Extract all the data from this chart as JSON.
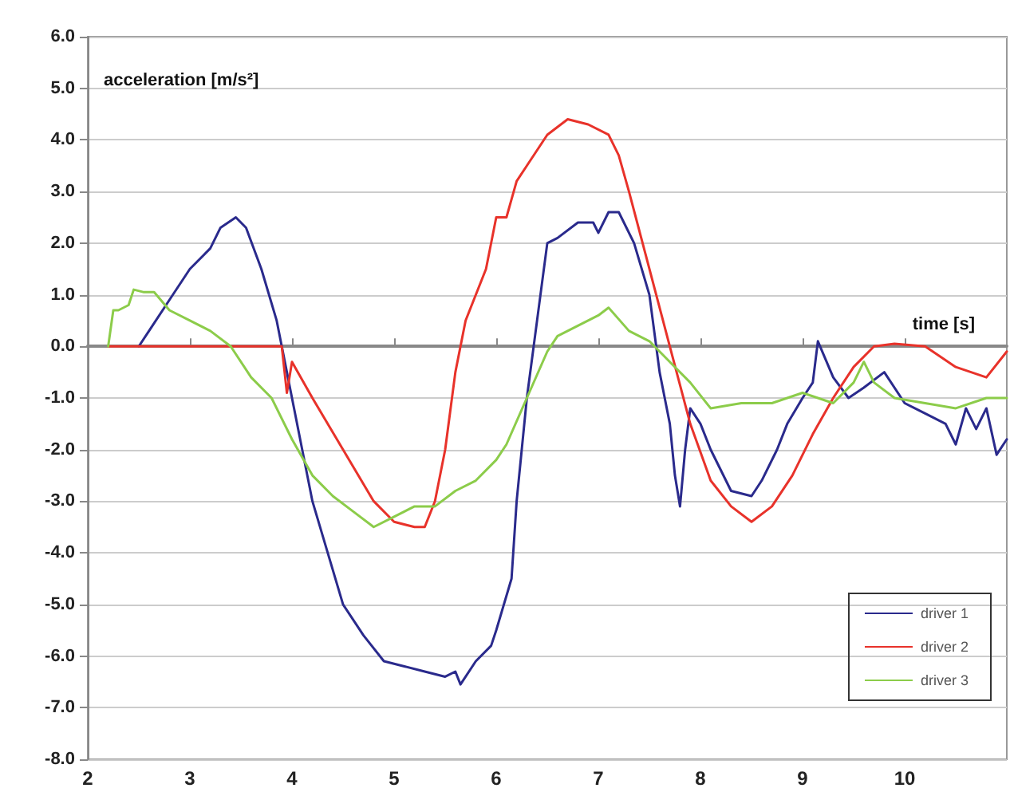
{
  "chart_data": {
    "type": "line",
    "xlabel": "time [s]",
    "ylabel": "acceleration [m/s²]",
    "xlim": [
      2,
      11
    ],
    "xticks": [
      2,
      3,
      4,
      5,
      6,
      7,
      8,
      9,
      10
    ],
    "ylim": [
      -8,
      6
    ],
    "yticks": [
      {
        "value": -8,
        "label": "-8.0"
      },
      {
        "value": -7,
        "label": "-7.0"
      },
      {
        "value": -6,
        "label": "-6.0"
      },
      {
        "value": -5,
        "label": "-5.0"
      },
      {
        "value": -4,
        "label": "-4.0"
      },
      {
        "value": -3,
        "label": "-3.0"
      },
      {
        "value": -2,
        "label": "-2.0"
      },
      {
        "value": -1,
        "label": "-1.0"
      },
      {
        "value": 0,
        "label": "0.0"
      },
      {
        "value": 1,
        "label": "1.0"
      },
      {
        "value": 2,
        "label": "2.0"
      },
      {
        "value": 3,
        "label": "3.0"
      },
      {
        "value": 4,
        "label": "4.0"
      },
      {
        "value": 5,
        "label": "5.0"
      },
      {
        "value": 6,
        "label": "6.0"
      }
    ],
    "grid": "y",
    "legend": "bottom right",
    "marker": "none",
    "line_style": "solid",
    "series": [
      {
        "name": "driver 1",
        "color": "#2a2a8c",
        "x": [
          2.5,
          2.6,
          2.8,
          3.0,
          3.2,
          3.3,
          3.45,
          3.55,
          3.7,
          3.85,
          3.95,
          4.0,
          4.1,
          4.2,
          4.35,
          4.5,
          4.7,
          4.9,
          5.1,
          5.3,
          5.5,
          5.6,
          5.65,
          5.8,
          5.95,
          6.0,
          6.15,
          6.2,
          6.3,
          6.4,
          6.5,
          6.6,
          6.8,
          6.95,
          7.0,
          7.1,
          7.2,
          7.35,
          7.5,
          7.6,
          7.7,
          7.75,
          7.8,
          7.85,
          7.9,
          8.0,
          8.1,
          8.3,
          8.5,
          8.6,
          8.75,
          8.85,
          9.0,
          9.1,
          9.15,
          9.3,
          9.45,
          9.6,
          9.8,
          10.0,
          10.2,
          10.4,
          10.5,
          10.6,
          10.7,
          10.8,
          10.9,
          11.0
        ],
        "values": [
          0,
          0.3,
          0.9,
          1.5,
          1.9,
          2.3,
          2.5,
          2.3,
          1.5,
          0.5,
          -0.5,
          -1.0,
          -2.0,
          -3.0,
          -4.0,
          -5.0,
          -5.6,
          -6.1,
          -6.2,
          -6.3,
          -6.4,
          -6.3,
          -6.55,
          -6.1,
          -5.8,
          -5.5,
          -4.5,
          -3.0,
          -1.0,
          0.5,
          2.0,
          2.1,
          2.4,
          2.4,
          2.2,
          2.6,
          2.6,
          2.0,
          1.0,
          -0.5,
          -1.5,
          -2.5,
          -3.1,
          -2.0,
          -1.2,
          -1.5,
          -2.0,
          -2.8,
          -2.9,
          -2.6,
          -2.0,
          -1.5,
          -1.0,
          -0.7,
          0.1,
          -0.6,
          -1.0,
          -0.8,
          -0.5,
          -1.1,
          -1.3,
          -1.5,
          -1.9,
          -1.2,
          -1.6,
          -1.2,
          -2.1,
          -1.8
        ]
      },
      {
        "name": "driver 2",
        "color": "#e8322a",
        "x": [
          2.2,
          3.9,
          3.95,
          4.0,
          4.2,
          4.5,
          4.8,
          5.0,
          5.2,
          5.3,
          5.4,
          5.5,
          5.6,
          5.7,
          5.9,
          6.0,
          6.1,
          6.2,
          6.3,
          6.5,
          6.7,
          6.9,
          7.1,
          7.2,
          7.3,
          7.5,
          7.7,
          7.9,
          8.1,
          8.3,
          8.5,
          8.7,
          8.9,
          9.1,
          9.3,
          9.5,
          9.7,
          9.9,
          10.2,
          10.5,
          10.8,
          11.0
        ],
        "values": [
          0,
          0,
          -0.9,
          -0.3,
          -1.0,
          -2.0,
          -3.0,
          -3.4,
          -3.5,
          -3.5,
          -3.0,
          -2.0,
          -0.5,
          0.5,
          1.5,
          2.5,
          2.5,
          3.2,
          3.5,
          4.1,
          4.4,
          4.3,
          4.1,
          3.7,
          3.0,
          1.5,
          0,
          -1.5,
          -2.6,
          -3.1,
          -3.4,
          -3.1,
          -2.5,
          -1.7,
          -1.0,
          -0.4,
          0,
          0.05,
          0,
          -0.4,
          -0.6,
          -0.1
        ]
      },
      {
        "name": "driver 3",
        "color": "#8ccc4a",
        "x": [
          2.2,
          2.25,
          2.3,
          2.4,
          2.45,
          2.55,
          2.65,
          2.8,
          3.0,
          3.2,
          3.4,
          3.6,
          3.8,
          4.0,
          4.2,
          4.4,
          4.6,
          4.8,
          5.0,
          5.2,
          5.4,
          5.6,
          5.8,
          6.0,
          6.1,
          6.3,
          6.5,
          6.6,
          6.8,
          7.0,
          7.1,
          7.3,
          7.5,
          7.7,
          7.9,
          8.1,
          8.4,
          8.7,
          9.0,
          9.3,
          9.5,
          9.6,
          9.7,
          9.9,
          10.2,
          10.5,
          10.8,
          11.0
        ],
        "values": [
          0,
          0.7,
          0.7,
          0.8,
          1.1,
          1.05,
          1.05,
          0.7,
          0.5,
          0.3,
          0.0,
          -0.6,
          -1.0,
          -1.8,
          -2.5,
          -2.9,
          -3.2,
          -3.5,
          -3.3,
          -3.1,
          -3.1,
          -2.8,
          -2.6,
          -2.2,
          -1.9,
          -1.0,
          -0.1,
          0.2,
          0.4,
          0.6,
          0.75,
          0.3,
          0.1,
          -0.3,
          -0.7,
          -1.2,
          -1.1,
          -1.1,
          -0.9,
          -1.1,
          -0.7,
          -0.3,
          -0.7,
          -1.0,
          -1.1,
          -1.2,
          -1.0,
          -1.0
        ]
      }
    ]
  }
}
